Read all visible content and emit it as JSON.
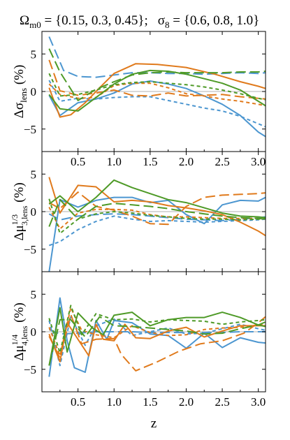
{
  "title": {
    "omega": "Ω",
    "omega_sub": "m0",
    "omega_vals": " = {0.15, 0.3, 0.45};",
    "sigma": "σ",
    "sigma_sub": "8",
    "sigma_vals": " = {0.6, 0.8, 1.0}"
  },
  "xlabel": "z",
  "colors": {
    "blue": "#4C96D0",
    "orange": "#E07A1C",
    "green": "#4E9A27",
    "zero_line": "#b0b0b0"
  },
  "chart_data": [
    {
      "type": "line",
      "ylabel": {
        "main": "Δσ",
        "sub": "lens",
        "sup": "",
        "unit": " (%)"
      },
      "xlim": [
        0.0,
        3.1
      ],
      "ylim": [
        -8,
        8
      ],
      "xticks": [
        0.5,
        1.0,
        1.5,
        2.0,
        2.5,
        3.0
      ],
      "xticklabels": [
        "0.5",
        "1.0",
        "1.5",
        "2.0",
        "2.5",
        "3.0"
      ],
      "yticks": [
        -5,
        0,
        5
      ],
      "yticklabels": [
        "−5",
        "0",
        "5"
      ],
      "series": [
        {
          "color": "blue",
          "dash": "solid",
          "x": [
            0.1,
            0.25,
            0.5,
            0.75,
            1.0,
            1.25,
            1.5,
            1.75,
            2.0,
            2.25,
            2.5,
            2.75,
            3.0,
            3.1
          ],
          "y": [
            -0.5,
            -3.2,
            -1.5,
            -1.0,
            -0.2,
            1.0,
            1.4,
            1.0,
            0.4,
            -0.6,
            -1.7,
            -3.2,
            -5.4,
            -6.0
          ]
        },
        {
          "color": "blue",
          "dash": "long",
          "x": [
            0.1,
            0.3,
            0.5,
            0.75,
            1.0,
            1.25,
            1.5,
            1.75,
            2.0,
            2.25,
            2.5,
            2.75,
            3.0,
            3.1
          ],
          "y": [
            7.3,
            2.8,
            2.0,
            1.9,
            2.2,
            2.5,
            2.5,
            2.4,
            2.4,
            2.3,
            2.4,
            2.5,
            2.4,
            2.5
          ]
        },
        {
          "color": "blue",
          "dash": "short",
          "x": [
            0.1,
            0.25,
            0.5,
            0.75,
            1.0,
            1.25,
            1.5,
            1.75,
            2.0,
            2.25,
            2.5,
            2.75,
            3.0,
            3.1
          ],
          "y": [
            1.5,
            -1.3,
            -0.9,
            -1.0,
            -0.8,
            -0.7,
            -0.7,
            -1.2,
            -1.7,
            -2.2,
            -2.6,
            -3.3,
            -4.3,
            -4.7
          ]
        },
        {
          "color": "orange",
          "dash": "solid",
          "x": [
            0.1,
            0.25,
            0.4,
            0.6,
            0.8,
            1.0,
            1.3,
            1.6,
            2.0,
            2.4,
            2.75,
            3.0,
            3.1
          ],
          "y": [
            0.5,
            -3.4,
            -3.1,
            -1.5,
            0.5,
            2.4,
            3.7,
            3.6,
            3.2,
            2.3,
            1.3,
            0.7,
            0.4
          ]
        },
        {
          "color": "orange",
          "dash": "long",
          "x": [
            0.1,
            0.25,
            0.5,
            0.75,
            1.0,
            1.25,
            1.5,
            1.75,
            2.0,
            2.25,
            2.5,
            2.75,
            3.0,
            3.1
          ],
          "y": [
            4.2,
            0.1,
            -0.5,
            -0.2,
            0.2,
            -0.5,
            -0.6,
            -0.2,
            -0.6,
            -0.5,
            -0.4,
            -0.7,
            -0.9,
            -1.0
          ]
        },
        {
          "color": "orange",
          "dash": "short",
          "x": [
            0.1,
            0.25,
            0.5,
            0.75,
            1.0,
            1.25,
            1.5,
            1.75,
            2.0,
            2.25,
            2.5,
            2.75,
            3.0,
            3.1
          ],
          "y": [
            1.0,
            -0.4,
            -0.9,
            -0.8,
            0.8,
            1.1,
            1.1,
            0.5,
            -0.3,
            -0.6,
            -1.0,
            -1.3,
            -1.7,
            -1.9
          ]
        },
        {
          "color": "green",
          "dash": "solid",
          "x": [
            0.1,
            0.25,
            0.5,
            0.75,
            1.0,
            1.25,
            1.5,
            1.75,
            2.0,
            2.25,
            2.5,
            2.75,
            3.0,
            3.1
          ],
          "y": [
            -0.4,
            -2.3,
            -2.6,
            -0.8,
            1.0,
            2.3,
            2.8,
            2.7,
            2.3,
            1.7,
            1.1,
            0.2,
            -1.3,
            -1.9
          ]
        },
        {
          "color": "green",
          "dash": "long",
          "x": [
            0.1,
            0.25,
            0.5,
            0.75,
            1.0,
            1.25,
            1.5,
            1.75,
            2.0,
            2.25,
            2.5,
            2.75,
            3.0,
            3.1
          ],
          "y": [
            5.7,
            2.6,
            -1.2,
            0.3,
            1.3,
            2.2,
            2.5,
            2.6,
            2.5,
            2.5,
            2.5,
            2.6,
            2.6,
            2.7
          ]
        },
        {
          "color": "green",
          "dash": "short",
          "x": [
            0.1,
            0.25,
            0.5,
            0.75,
            1.0,
            1.25,
            1.5,
            1.75,
            2.0,
            2.25,
            2.5,
            2.75,
            3.0,
            3.1
          ],
          "y": [
            2.4,
            -0.6,
            -0.4,
            0.2,
            0.9,
            1.2,
            1.3,
            1.1,
            0.9,
            0.6,
            0.2,
            -0.3,
            -0.9,
            -1.1
          ]
        }
      ]
    },
    {
      "type": "line",
      "ylabel": {
        "main": "Δμ",
        "sub": "3,lens",
        "sup": "1/3",
        "unit": " (%)"
      },
      "xlim": [
        0.0,
        3.1
      ],
      "ylim": [
        -8,
        8
      ],
      "xticks": [
        0.5,
        1.0,
        1.5,
        2.0,
        2.5,
        3.0
      ],
      "xticklabels": [
        "",
        "",
        "",
        "",
        "",
        ""
      ],
      "yticks": [
        -5,
        0,
        5
      ],
      "yticklabels": [
        "−5",
        "0",
        "5"
      ],
      "series": [
        {
          "color": "blue",
          "dash": "solid",
          "x": [
            0.1,
            0.25,
            0.5,
            0.75,
            1.0,
            1.25,
            1.5,
            1.75,
            2.0,
            2.25,
            2.5,
            2.75,
            3.0,
            3.1
          ],
          "y": [
            -8.0,
            1.6,
            0.6,
            1.5,
            1.9,
            1.9,
            1.2,
            1.5,
            -0.4,
            -1.6,
            0.9,
            1.5,
            1.4,
            1.9
          ]
        },
        {
          "color": "blue",
          "dash": "long",
          "x": [
            0.1,
            0.25,
            0.5,
            0.75,
            1.0,
            1.25,
            1.5,
            1.75,
            2.0,
            2.25,
            2.5,
            2.75,
            3.0,
            3.1
          ],
          "y": [
            -0.3,
            -1.1,
            -0.6,
            -0.4,
            -0.3,
            -0.4,
            -0.6,
            -0.8,
            -1.0,
            -1.1,
            -1.2,
            -1.0,
            -0.8,
            -0.7
          ]
        },
        {
          "color": "blue",
          "dash": "short",
          "x": [
            0.1,
            0.25,
            0.5,
            0.75,
            1.0,
            1.25,
            1.5,
            1.75,
            2.0,
            2.25,
            2.5,
            2.75,
            3.0,
            3.1
          ],
          "y": [
            -4.5,
            -4.0,
            -2.4,
            -1.3,
            -0.6,
            -1.0,
            -1.3,
            -1.2,
            -1.3,
            -1.4,
            -1.3,
            -1.2,
            -1.1,
            -1.0
          ]
        },
        {
          "color": "orange",
          "dash": "solid",
          "x": [
            0.1,
            0.25,
            0.5,
            0.75,
            1.0,
            1.25,
            1.5,
            1.75,
            2.0,
            2.25,
            2.5,
            2.75,
            3.0,
            3.1
          ],
          "y": [
            4.6,
            -0.2,
            3.5,
            3.3,
            1.3,
            1.5,
            1.3,
            0.8,
            0.5,
            0.1,
            -0.4,
            -1.4,
            -2.6,
            -3.2
          ]
        },
        {
          "color": "orange",
          "dash": "long",
          "x": [
            0.1,
            0.25,
            0.5,
            0.75,
            1.0,
            1.25,
            1.5,
            1.75,
            2.0,
            2.25,
            2.5,
            2.75,
            3.0,
            3.1
          ],
          "y": [
            1.2,
            0.4,
            2.6,
            0.7,
            0.2,
            -0.6,
            -1.6,
            -1.7,
            0.7,
            1.9,
            2.2,
            2.3,
            2.4,
            2.5
          ]
        },
        {
          "color": "orange",
          "dash": "short",
          "x": [
            0.1,
            0.25,
            0.5,
            0.75,
            1.0,
            1.25,
            1.5,
            1.75,
            2.0,
            2.25,
            2.5,
            2.75,
            3.0,
            3.1
          ],
          "y": [
            0.6,
            -2.3,
            -0.2,
            0.3,
            0.3,
            0.2,
            -0.4,
            -0.7,
            -0.7,
            -0.8,
            -0.9,
            -0.9,
            -0.9,
            -1.0
          ]
        },
        {
          "color": "green",
          "dash": "solid",
          "x": [
            0.1,
            0.25,
            0.5,
            0.75,
            1.0,
            1.25,
            1.5,
            1.75,
            2.0,
            2.25,
            2.5,
            2.75,
            3.0,
            3.1
          ],
          "y": [
            1.0,
            2.1,
            0.0,
            1.9,
            4.2,
            3.2,
            2.4,
            1.6,
            1.2,
            0.5,
            -0.2,
            -0.6,
            -0.7,
            -0.8
          ]
        },
        {
          "color": "green",
          "dash": "long",
          "x": [
            0.1,
            0.25,
            0.5,
            0.75,
            1.0,
            1.25,
            1.5,
            1.75,
            2.0,
            2.25,
            2.5,
            2.75,
            3.0,
            3.1
          ],
          "y": [
            -2.0,
            1.6,
            -1.0,
            0.7,
            1.1,
            0.9,
            0.7,
            0.4,
            0.0,
            -0.3,
            -0.6,
            -0.8,
            -0.9,
            -1.0
          ]
        },
        {
          "color": "green",
          "dash": "short",
          "x": [
            0.1,
            0.25,
            0.5,
            0.75,
            1.0,
            1.25,
            1.5,
            1.75,
            2.0,
            2.25,
            2.5,
            2.75,
            3.0,
            3.1
          ],
          "y": [
            1.7,
            -2.9,
            -1.0,
            -0.3,
            0.0,
            -0.2,
            -0.5,
            -0.7,
            -0.9,
            -1.0,
            -1.0,
            -1.1,
            -1.0,
            -0.9
          ]
        }
      ]
    },
    {
      "type": "line",
      "ylabel": {
        "main": "Δμ",
        "sub": "4,lens",
        "sup": "1/4",
        "unit": " (%)"
      },
      "xlim": [
        0.0,
        3.1
      ],
      "ylim": [
        -8,
        8
      ],
      "xticks": [
        0.5,
        1.0,
        1.5,
        2.0,
        2.5,
        3.0
      ],
      "xticklabels": [
        "0.5",
        "1.0",
        "1.5",
        "2.0",
        "2.5",
        "3.0"
      ],
      "yticks": [
        -5,
        0,
        5
      ],
      "yticklabels": [
        "−5",
        "0",
        "5"
      ],
      "series": [
        {
          "color": "blue",
          "dash": "solid",
          "x": [
            0.1,
            0.25,
            0.35,
            0.45,
            0.6,
            0.75,
            0.9,
            1.0,
            1.25,
            1.5,
            1.75,
            2.0,
            2.25,
            2.5,
            2.75,
            3.0,
            3.1
          ],
          "y": [
            -6.0,
            4.5,
            -1.2,
            -4.8,
            -5.4,
            1.5,
            -1.0,
            1.5,
            1.2,
            -0.3,
            -0.5,
            -2.2,
            -0.2,
            -2.1,
            -0.8,
            -1.4,
            -1.5
          ]
        },
        {
          "color": "blue",
          "dash": "long",
          "x": [
            0.1,
            0.25,
            0.5,
            0.75,
            1.0,
            1.25,
            1.5,
            1.75,
            2.0,
            2.25,
            2.5,
            2.75,
            3.0,
            3.1
          ],
          "y": [
            0.3,
            -0.3,
            -0.2,
            0.0,
            0.0,
            0.0,
            -0.1,
            -0.1,
            -0.1,
            -0.1,
            -0.1,
            0.0,
            0.0,
            0.0
          ]
        },
        {
          "color": "blue",
          "dash": "short",
          "x": [
            0.1,
            0.25,
            0.4,
            0.6,
            0.75,
            1.0,
            1.25,
            1.5,
            1.75,
            2.0,
            2.25,
            2.5,
            2.75,
            3.0,
            3.1
          ],
          "y": [
            1.5,
            -4.5,
            2.0,
            -1.8,
            0.8,
            1.7,
            -0.5,
            0.0,
            0.5,
            -0.3,
            -0.2,
            0.4,
            1.0,
            0.4,
            0.2
          ]
        },
        {
          "color": "orange",
          "dash": "solid",
          "x": [
            0.1,
            0.25,
            0.35,
            0.5,
            0.65,
            0.75,
            0.85,
            1.0,
            1.15,
            1.3,
            1.5,
            1.75,
            2.0,
            2.25,
            2.5,
            2.75,
            3.0,
            3.1
          ],
          "y": [
            -0.3,
            -4.0,
            1.2,
            -1.0,
            -3.2,
            1.0,
            -1.0,
            -1.2,
            1.0,
            -0.8,
            -0.9,
            0.1,
            0.6,
            -0.7,
            0.1,
            0.8,
            0.8,
            0.8
          ]
        },
        {
          "color": "orange",
          "dash": "long",
          "x": [
            0.1,
            0.25,
            0.4,
            0.55,
            0.75,
            1.0,
            1.1,
            1.3,
            1.6,
            1.9,
            2.2,
            2.5,
            2.8,
            3.0,
            3.1
          ],
          "y": [
            -0.6,
            -3.5,
            2.3,
            -1.6,
            -1.0,
            -0.9,
            -3.0,
            -5.2,
            -4.0,
            -2.6,
            -1.6,
            -1.2,
            -0.2,
            1.2,
            2.0
          ]
        },
        {
          "color": "orange",
          "dash": "short",
          "x": [
            0.1,
            0.25,
            0.4,
            0.55,
            0.75,
            1.0,
            1.25,
            1.5,
            1.75,
            2.0,
            2.25,
            2.5,
            2.75,
            3.0,
            3.1
          ],
          "y": [
            0.6,
            -3.2,
            3.2,
            0.2,
            -0.4,
            -0.8,
            0.8,
            -0.1,
            -0.5,
            -0.4,
            0.3,
            0.5,
            0.6,
            0.9,
            1.0
          ]
        },
        {
          "color": "green",
          "dash": "solid",
          "x": [
            0.1,
            0.25,
            0.35,
            0.5,
            0.7,
            0.85,
            1.0,
            1.25,
            1.5,
            1.75,
            2.0,
            2.25,
            2.5,
            2.75,
            3.0,
            3.1
          ],
          "y": [
            -4.5,
            3.2,
            -2.7,
            2.5,
            0.5,
            -0.4,
            2.2,
            2.6,
            0.8,
            1.6,
            1.9,
            1.9,
            2.6,
            1.9,
            0.9,
            0.7
          ]
        },
        {
          "color": "green",
          "dash": "long",
          "x": [
            0.1,
            0.25,
            0.4,
            0.6,
            0.8,
            1.0,
            1.25,
            1.5,
            1.75,
            2.0,
            2.25,
            2.5,
            2.75,
            3.0,
            3.1
          ],
          "y": [
            -4.5,
            1.6,
            1.6,
            -0.7,
            2.0,
            0.8,
            0.7,
            0.5,
            0.3,
            0.1,
            -0.3,
            -0.2,
            0.4,
            0.9,
            1.3
          ]
        },
        {
          "color": "green",
          "dash": "short",
          "x": [
            0.1,
            0.25,
            0.4,
            0.55,
            0.75,
            1.0,
            1.25,
            1.5,
            1.75,
            2.0,
            2.25,
            2.5,
            2.75,
            3.0,
            3.1
          ],
          "y": [
            1.8,
            -2.8,
            3.5,
            -0.4,
            2.4,
            1.6,
            1.7,
            1.3,
            1.6,
            1.5,
            1.4,
            1.0,
            1.3,
            1.5,
            1.6
          ]
        }
      ]
    }
  ]
}
